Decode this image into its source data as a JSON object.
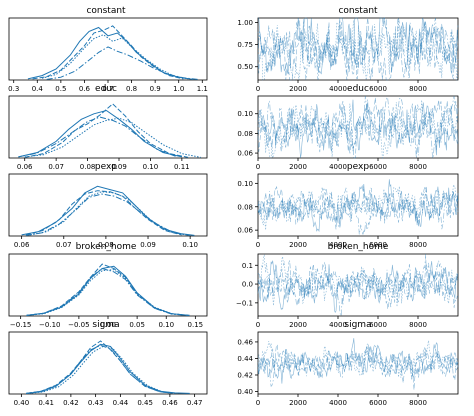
{
  "chart_data": [
    {
      "type": "line",
      "kind": "density",
      "title": "constant",
      "x_ticks": [
        "0.3",
        "0.4",
        "0.5",
        "0.6",
        "0.7",
        "0.8",
        "0.9",
        "1.0",
        "1.1"
      ],
      "xlim": [
        0.28,
        1.12
      ],
      "chains": 4,
      "series_color": "#1f77b4",
      "series": [
        {
          "x": [
            0.36,
            0.42,
            0.48,
            0.54,
            0.58,
            0.62,
            0.66,
            0.7,
            0.74,
            0.78,
            0.82,
            0.88,
            0.94,
            1.0,
            1.06
          ],
          "y": [
            0.02,
            0.08,
            0.2,
            0.45,
            0.7,
            0.88,
            0.95,
            0.8,
            0.85,
            0.7,
            0.5,
            0.3,
            0.12,
            0.05,
            0.01
          ]
        },
        {
          "x": [
            0.38,
            0.44,
            0.5,
            0.55,
            0.6,
            0.64,
            0.68,
            0.72,
            0.76,
            0.8,
            0.84,
            0.9,
            0.96,
            1.02
          ],
          "y": [
            0.02,
            0.06,
            0.18,
            0.4,
            0.62,
            0.85,
            0.9,
            0.98,
            0.8,
            0.62,
            0.42,
            0.22,
            0.08,
            0.02
          ]
        },
        {
          "x": [
            0.42,
            0.48,
            0.54,
            0.6,
            0.64,
            0.68,
            0.72,
            0.76,
            0.8,
            0.86,
            0.92,
            0.98,
            1.04
          ],
          "y": [
            0.03,
            0.1,
            0.3,
            0.58,
            0.75,
            0.82,
            0.7,
            0.76,
            0.6,
            0.38,
            0.2,
            0.07,
            0.02
          ]
        },
        {
          "x": [
            0.44,
            0.5,
            0.56,
            0.62,
            0.66,
            0.7,
            0.74,
            0.78,
            0.84,
            0.9,
            0.96,
            1.02,
            1.08
          ],
          "y": [
            0.01,
            0.05,
            0.16,
            0.36,
            0.5,
            0.6,
            0.52,
            0.46,
            0.34,
            0.2,
            0.1,
            0.04,
            0.01
          ]
        }
      ]
    },
    {
      "type": "line",
      "kind": "trace",
      "title": "constant",
      "x_ticks": [
        "0",
        "2000",
        "4000",
        "6000",
        "8000"
      ],
      "y_ticks": [
        "0.50",
        "0.75",
        "1.00"
      ],
      "xlim": [
        0,
        10000
      ],
      "ylim": [
        0.35,
        1.05
      ],
      "draws": 10000,
      "chains": 4,
      "mean": 0.71,
      "spread": 0.18,
      "series_color": "#1f77b4"
    },
    {
      "type": "line",
      "kind": "density",
      "title": "educ",
      "x_ticks": [
        "0.06",
        "0.07",
        "0.08",
        "0.09",
        "0.10",
        "0.11"
      ],
      "xlim": [
        0.055,
        0.118
      ],
      "chains": 4,
      "series_color": "#1f77b4",
      "series": [
        {
          "x": [
            0.058,
            0.064,
            0.07,
            0.074,
            0.078,
            0.082,
            0.086,
            0.09,
            0.094,
            0.098,
            0.104,
            0.11
          ],
          "y": [
            0.02,
            0.1,
            0.3,
            0.52,
            0.7,
            0.8,
            0.86,
            0.7,
            0.52,
            0.3,
            0.1,
            0.02
          ]
        },
        {
          "x": [
            0.06,
            0.066,
            0.072,
            0.076,
            0.08,
            0.084,
            0.088,
            0.092,
            0.096,
            0.1,
            0.106,
            0.112
          ],
          "y": [
            0.01,
            0.08,
            0.28,
            0.5,
            0.62,
            0.78,
            0.98,
            0.76,
            0.48,
            0.26,
            0.08,
            0.01
          ]
        },
        {
          "x": [
            0.06,
            0.066,
            0.072,
            0.078,
            0.082,
            0.086,
            0.09,
            0.094,
            0.098,
            0.104,
            0.11,
            0.116
          ],
          "y": [
            0.02,
            0.06,
            0.2,
            0.44,
            0.6,
            0.68,
            0.72,
            0.64,
            0.48,
            0.24,
            0.08,
            0.01
          ]
        },
        {
          "x": [
            0.058,
            0.064,
            0.07,
            0.076,
            0.08,
            0.084,
            0.088,
            0.092,
            0.096,
            0.102,
            0.108
          ],
          "y": [
            0.02,
            0.09,
            0.26,
            0.5,
            0.66,
            0.74,
            0.68,
            0.58,
            0.4,
            0.16,
            0.03
          ]
        }
      ]
    },
    {
      "type": "line",
      "kind": "trace",
      "title": "educ",
      "x_ticks": [
        "0",
        "2000",
        "4000",
        "6000",
        "8000"
      ],
      "y_ticks": [
        "0.06",
        "0.08",
        "0.10"
      ],
      "xlim": [
        0,
        10000
      ],
      "ylim": [
        0.055,
        0.118
      ],
      "draws": 10000,
      "chains": 4,
      "mean": 0.086,
      "spread": 0.012,
      "series_color": "#1f77b4"
    },
    {
      "type": "line",
      "kind": "density",
      "title": "pexp",
      "x_ticks": [
        "0.06",
        "0.07",
        "0.08",
        "0.09",
        "0.10"
      ],
      "xlim": [
        0.057,
        0.104
      ],
      "chains": 4,
      "series_color": "#1f77b4",
      "series": [
        {
          "x": [
            0.06,
            0.064,
            0.068,
            0.072,
            0.075,
            0.078,
            0.081,
            0.084,
            0.087,
            0.09,
            0.094,
            0.098,
            0.101
          ],
          "y": [
            0.02,
            0.08,
            0.24,
            0.5,
            0.78,
            0.9,
            0.84,
            0.78,
            0.55,
            0.32,
            0.12,
            0.04,
            0.01
          ]
        },
        {
          "x": [
            0.061,
            0.065,
            0.069,
            0.072,
            0.075,
            0.078,
            0.081,
            0.084,
            0.087,
            0.09,
            0.094,
            0.098
          ],
          "y": [
            0.02,
            0.1,
            0.3,
            0.58,
            0.76,
            0.82,
            0.8,
            0.72,
            0.5,
            0.3,
            0.1,
            0.02
          ]
        },
        {
          "x": [
            0.062,
            0.066,
            0.07,
            0.073,
            0.076,
            0.079,
            0.082,
            0.085,
            0.088,
            0.091,
            0.095,
            0.099
          ],
          "y": [
            0.02,
            0.08,
            0.26,
            0.5,
            0.72,
            0.8,
            0.78,
            0.68,
            0.48,
            0.26,
            0.08,
            0.02
          ]
        },
        {
          "x": [
            0.061,
            0.065,
            0.069,
            0.073,
            0.076,
            0.079,
            0.082,
            0.085,
            0.088,
            0.092,
            0.096,
            0.1
          ],
          "y": [
            0.01,
            0.06,
            0.22,
            0.48,
            0.7,
            0.76,
            0.72,
            0.62,
            0.44,
            0.22,
            0.06,
            0.01
          ]
        }
      ]
    },
    {
      "type": "line",
      "kind": "trace",
      "title": "pexp",
      "x_ticks": [
        "0",
        "2000",
        "4000",
        "6000",
        "8000"
      ],
      "y_ticks": [
        "0.06",
        "0.08",
        "0.10"
      ],
      "xlim": [
        0,
        10000
      ],
      "ylim": [
        0.055,
        0.108
      ],
      "draws": 10000,
      "chains": 4,
      "mean": 0.081,
      "spread": 0.008,
      "series_color": "#1f77b4"
    },
    {
      "type": "line",
      "kind": "density",
      "title": "broken_home",
      "x_ticks": [
        "−0.15",
        "−0.10",
        "−0.05",
        "0.00",
        "0.05",
        "0.10",
        "0.15"
      ],
      "xlim": [
        -0.17,
        0.17
      ],
      "chains": 4,
      "series_color": "#1f77b4",
      "series": [
        {
          "x": [
            -0.14,
            -0.11,
            -0.08,
            -0.05,
            -0.03,
            -0.01,
            0.01,
            0.03,
            0.05,
            0.08,
            0.11,
            0.14
          ],
          "y": [
            0.01,
            0.05,
            0.16,
            0.4,
            0.68,
            0.86,
            0.9,
            0.72,
            0.42,
            0.15,
            0.04,
            0.01
          ]
        },
        {
          "x": [
            -0.14,
            -0.11,
            -0.08,
            -0.05,
            -0.03,
            -0.01,
            0.01,
            0.03,
            0.05,
            0.08,
            0.11,
            0.14
          ],
          "y": [
            0.01,
            0.05,
            0.18,
            0.44,
            0.7,
            0.94,
            0.86,
            0.7,
            0.4,
            0.14,
            0.04,
            0.01
          ]
        },
        {
          "x": [
            -0.14,
            -0.11,
            -0.08,
            -0.05,
            -0.03,
            -0.01,
            0.01,
            0.03,
            0.05,
            0.08,
            0.11,
            0.14
          ],
          "y": [
            0.01,
            0.04,
            0.15,
            0.38,
            0.64,
            0.82,
            0.84,
            0.68,
            0.4,
            0.16,
            0.04,
            0.01
          ]
        },
        {
          "x": [
            -0.14,
            -0.11,
            -0.08,
            -0.05,
            -0.03,
            -0.01,
            0.01,
            0.03,
            0.05,
            0.08,
            0.11,
            0.14
          ],
          "y": [
            0.01,
            0.05,
            0.17,
            0.42,
            0.7,
            0.86,
            0.8,
            0.66,
            0.38,
            0.14,
            0.03,
            0.01
          ]
        }
      ]
    },
    {
      "type": "line",
      "kind": "trace",
      "title": "broken_home",
      "x_ticks": [
        "0",
        "2000",
        "4000",
        "6000",
        "8000"
      ],
      "y_ticks": [
        "−0.1",
        "0.0",
        "0.1"
      ],
      "xlim": [
        0,
        10000
      ],
      "ylim": [
        -0.17,
        0.16
      ],
      "draws": 10000,
      "chains": 4,
      "mean": 0.0,
      "spread": 0.05,
      "series_color": "#1f77b4"
    },
    {
      "type": "line",
      "kind": "density",
      "title": "sigma",
      "x_ticks": [
        "0.40",
        "0.41",
        "0.42",
        "0.43",
        "0.44",
        "0.45",
        "0.46",
        "0.47"
      ],
      "xlim": [
        0.395,
        0.475
      ],
      "chains": 4,
      "series_color": "#1f77b4",
      "series": [
        {
          "x": [
            0.402,
            0.408,
            0.414,
            0.42,
            0.424,
            0.428,
            0.432,
            0.436,
            0.44,
            0.444,
            0.45,
            0.456,
            0.462,
            0.468
          ],
          "y": [
            0.01,
            0.04,
            0.14,
            0.36,
            0.58,
            0.78,
            0.9,
            0.86,
            0.64,
            0.4,
            0.16,
            0.05,
            0.02,
            0.01
          ]
        },
        {
          "x": [
            0.402,
            0.408,
            0.414,
            0.42,
            0.424,
            0.428,
            0.432,
            0.436,
            0.44,
            0.444,
            0.45,
            0.456,
            0.462
          ],
          "y": [
            0.01,
            0.05,
            0.16,
            0.38,
            0.6,
            0.84,
            0.96,
            0.8,
            0.6,
            0.36,
            0.14,
            0.04,
            0.01
          ]
        },
        {
          "x": [
            0.403,
            0.409,
            0.415,
            0.421,
            0.425,
            0.429,
            0.433,
            0.437,
            0.441,
            0.445,
            0.451,
            0.457,
            0.463
          ],
          "y": [
            0.01,
            0.04,
            0.13,
            0.34,
            0.56,
            0.76,
            0.86,
            0.82,
            0.62,
            0.38,
            0.15,
            0.04,
            0.01
          ]
        },
        {
          "x": [
            0.402,
            0.408,
            0.414,
            0.42,
            0.424,
            0.428,
            0.432,
            0.436,
            0.44,
            0.444,
            0.45,
            0.456,
            0.462
          ],
          "y": [
            0.01,
            0.05,
            0.15,
            0.36,
            0.6,
            0.8,
            0.88,
            0.82,
            0.6,
            0.36,
            0.14,
            0.04,
            0.01
          ]
        }
      ]
    },
    {
      "type": "line",
      "kind": "trace",
      "title": "sigma",
      "x_ticks": [
        "0",
        "2000",
        "4000",
        "6000",
        "8000"
      ],
      "y_ticks": [
        "0.40",
        "0.42",
        "0.44",
        "0.46"
      ],
      "xlim": [
        0,
        10000
      ],
      "ylim": [
        0.397,
        0.472
      ],
      "draws": 10000,
      "chains": 4,
      "mean": 0.433,
      "spread": 0.009,
      "series_color": "#1f77b4"
    }
  ]
}
